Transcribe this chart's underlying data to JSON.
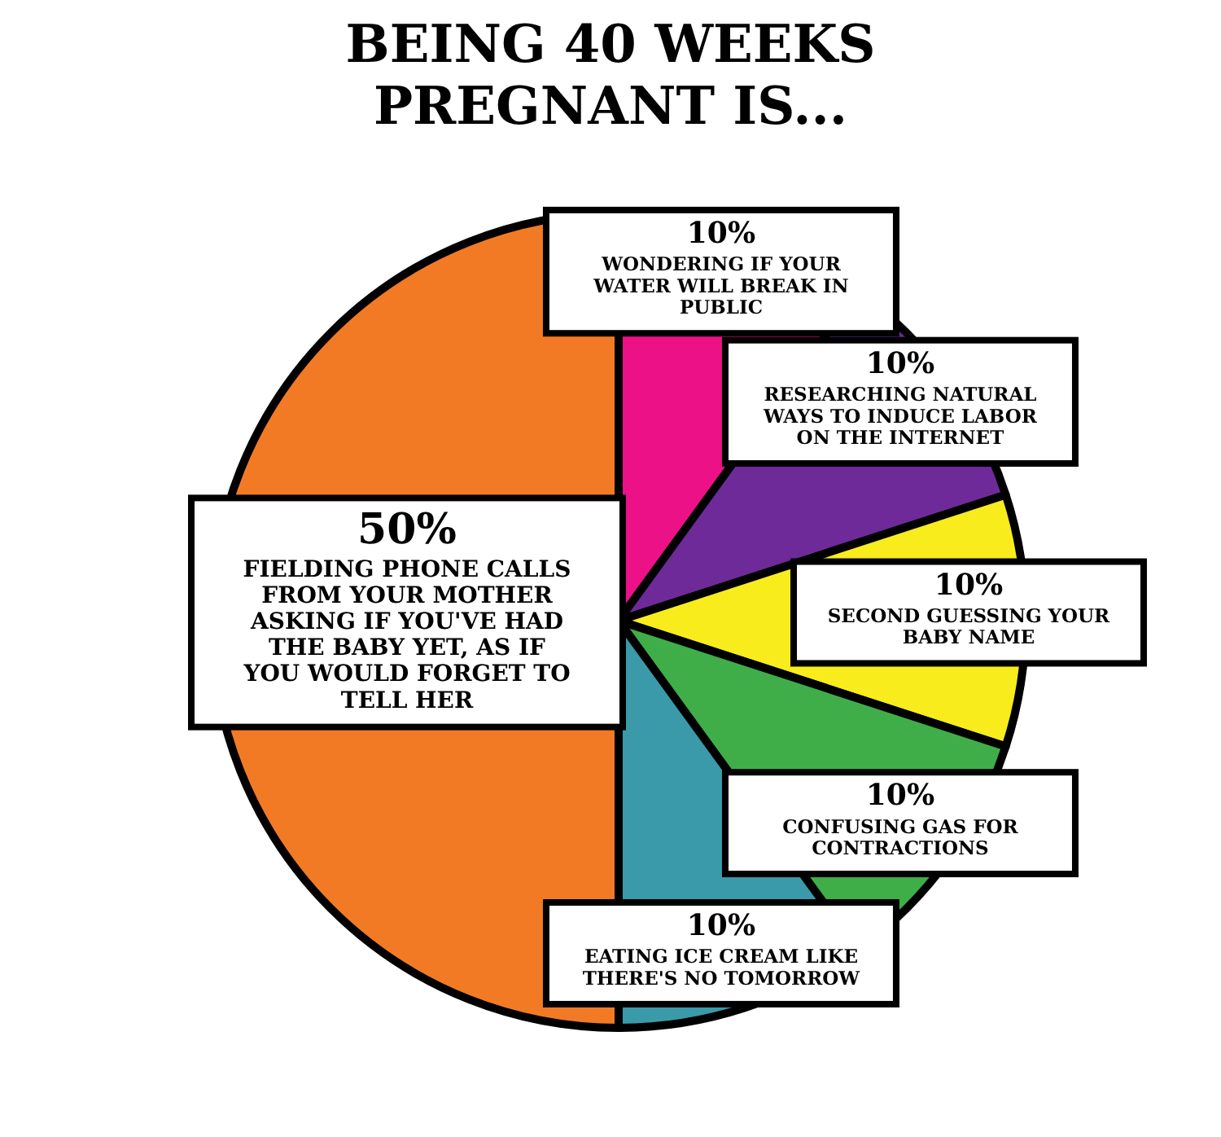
{
  "chart_data": {
    "type": "pie",
    "title": "BEING 40 WEEKS PREGNANT IS...",
    "categories": [
      "WONDERING IF YOUR WATER WILL BREAK IN PUBLIC",
      "RESEARCHING NATURAL WAYS TO INDUCE LABOR ON THE INTERNET",
      "SECOND GUESSING YOUR BABY NAME",
      "CONFUSING GAS FOR CONTRACTIONS",
      "EATING ICE CREAM LIKE THERE'S NO TOMORROW",
      "FIELDING PHONE CALLS FROM YOUR MOTHER ASKING IF YOU'VE HAD THE BABY YET, AS IF YOU WOULD FORGET TO TELL HER"
    ],
    "values": [
      10,
      10,
      10,
      10,
      10,
      50
    ],
    "value_labels": [
      "10%",
      "10%",
      "10%",
      "10%",
      "10%",
      "50%"
    ],
    "colors": [
      "#ec1187",
      "#6f2a9a",
      "#f8ec1c",
      "#3fae49",
      "#3a9aaa",
      "#f37a25"
    ],
    "legend": false
  }
}
